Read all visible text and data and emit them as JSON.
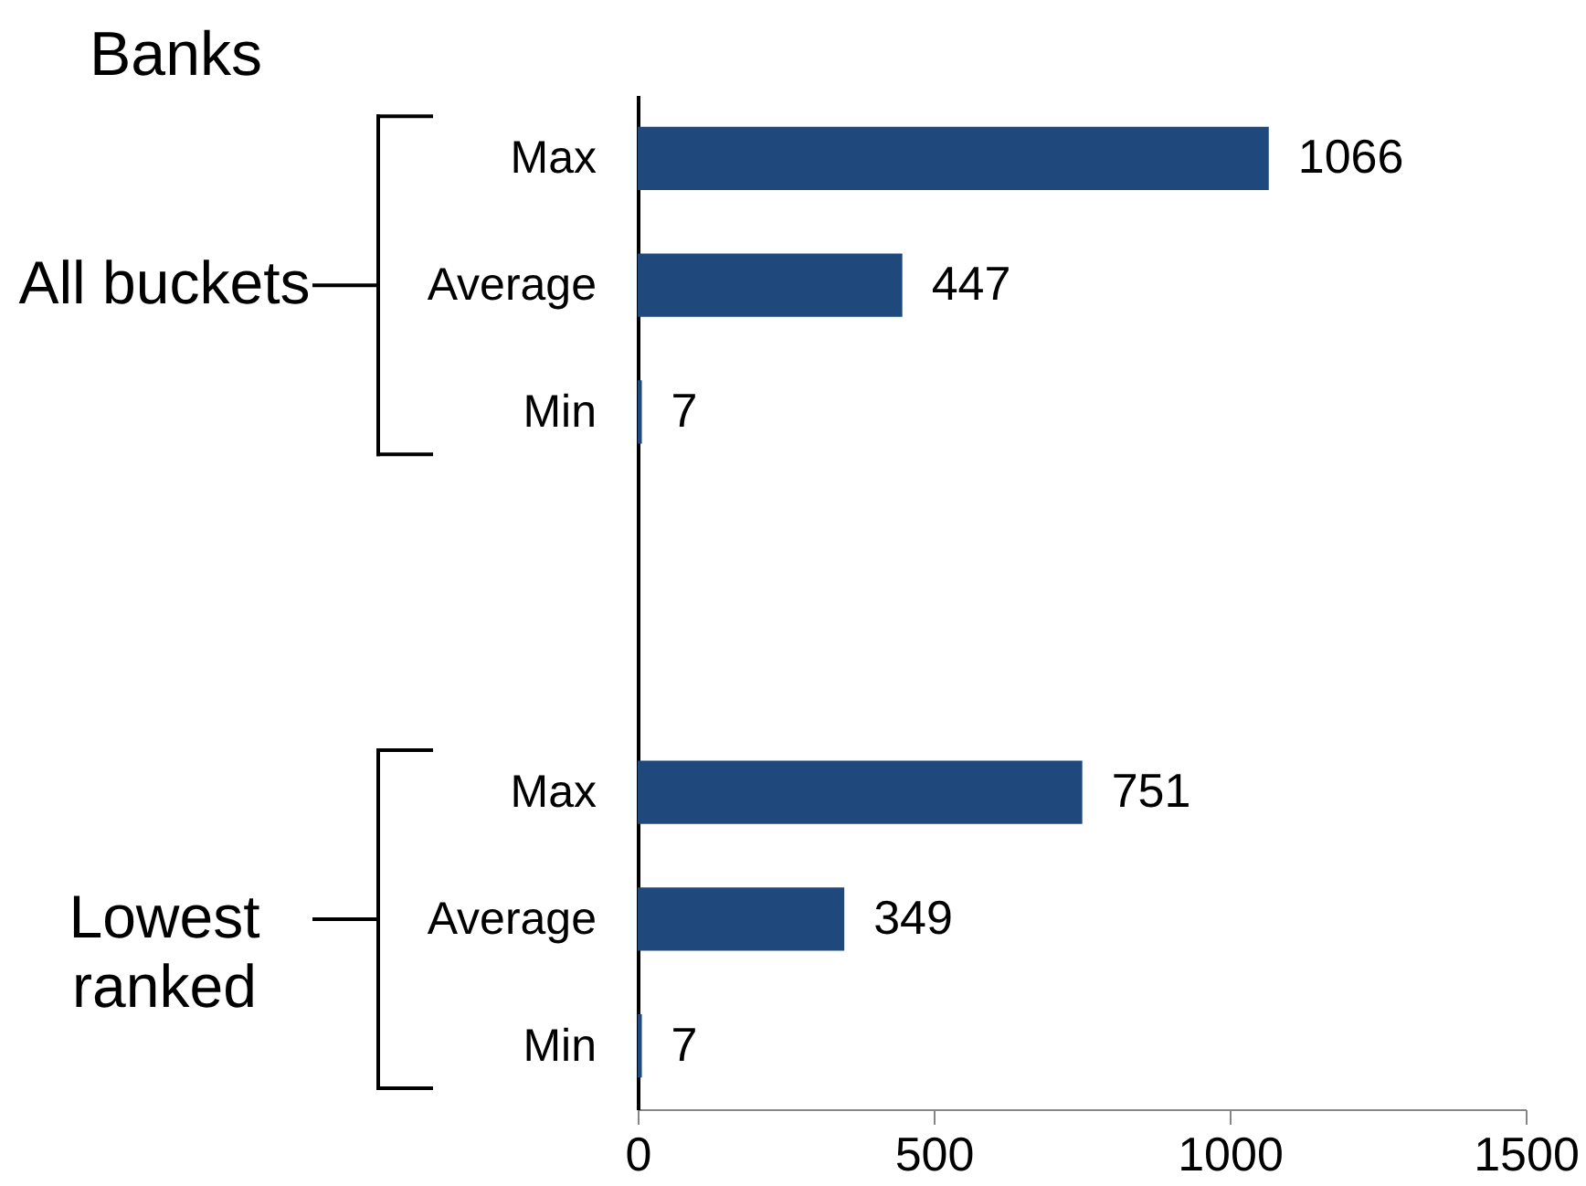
{
  "chart_data": {
    "type": "bar",
    "orientation": "horizontal",
    "title": "Banks",
    "categories": [
      "Max",
      "Average",
      "Min",
      null,
      null,
      "Max",
      "Average",
      "Min"
    ],
    "values": [
      1066,
      447,
      7,
      null,
      null,
      751,
      349,
      7
    ],
    "color": "#1f497d",
    "xlim": [
      0,
      1500
    ],
    "xticks": [
      0,
      500,
      1000,
      1500
    ],
    "data_labels": true,
    "annotations": [
      "All buckets",
      "Lowest ranked"
    ]
  }
}
